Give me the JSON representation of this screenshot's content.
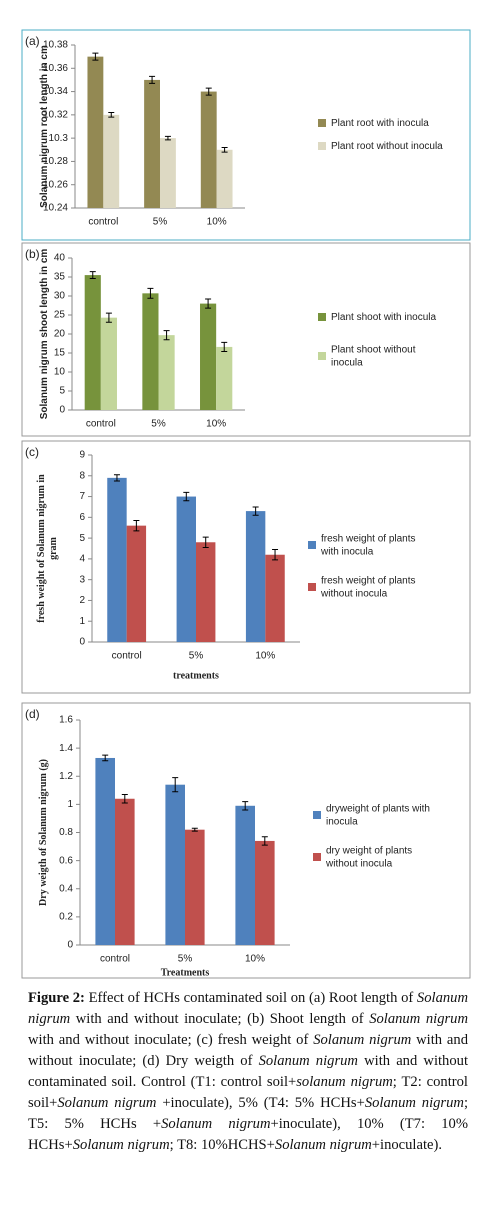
{
  "chart_data": [
    {
      "type": "bar",
      "label": "(a)",
      "ylabel": "Solanum nigrum root length in cm",
      "categories": [
        "control",
        "5%",
        "10%"
      ],
      "ylim": [
        10.24,
        10.38
      ],
      "yticks": [
        10.24,
        10.26,
        10.28,
        10.3,
        10.32,
        10.34,
        10.36,
        10.38
      ],
      "series": [
        {
          "name": "Plant root with inocula",
          "color": "#938953",
          "values": [
            10.37,
            10.35,
            10.34
          ],
          "errors": [
            0.003,
            0.003,
            0.003
          ]
        },
        {
          "name": "Plant root without inocula",
          "color": "#ddd9c3",
          "values": [
            10.32,
            10.3,
            10.29
          ],
          "errors": [
            0.002,
            0.0015,
            0.002
          ]
        }
      ]
    },
    {
      "type": "bar",
      "label": "(b)",
      "ylabel": "Solanum nigrum shoot length in cm",
      "categories": [
        "control",
        "5%",
        "10%"
      ],
      "ylim": [
        0,
        40
      ],
      "yticks": [
        0,
        5,
        10,
        15,
        20,
        25,
        30,
        35,
        40
      ],
      "series": [
        {
          "name": "Plant shoot with inocula",
          "color": "#77933c",
          "values": [
            35.5,
            30.7,
            28
          ],
          "errors": [
            0.9,
            1.3,
            1.2
          ]
        },
        {
          "name": "Plant shoot without inocula",
          "color": "#c3d69b",
          "values": [
            24.3,
            19.7,
            16.6
          ],
          "errors": [
            1.2,
            1.2,
            1.2
          ]
        }
      ]
    },
    {
      "type": "bar",
      "label": "(c)",
      "ylabel": "fresh weight of Solanum nigrum in gram",
      "xlabel": "treatments",
      "categories": [
        "control",
        "5%",
        "10%"
      ],
      "ylim": [
        0,
        9
      ],
      "yticks": [
        0,
        1,
        2,
        3,
        4,
        5,
        6,
        7,
        8,
        9
      ],
      "series": [
        {
          "name": "fresh weight of plants with inocula",
          "color": "#4f81bd",
          "values": [
            7.9,
            7.0,
            6.3
          ],
          "errors": [
            0.15,
            0.2,
            0.2
          ]
        },
        {
          "name": "fresh weight of plants without inocula",
          "color": "#c0504d",
          "values": [
            5.6,
            4.8,
            4.2
          ],
          "errors": [
            0.25,
            0.25,
            0.25
          ]
        }
      ]
    },
    {
      "type": "bar",
      "label": "(d)",
      "ylabel": "Dry weigth of Solanum nigrum (g)",
      "xlabel": "Treatments",
      "categories": [
        "control",
        "5%",
        "10%"
      ],
      "ylim": [
        0,
        1.6
      ],
      "yticks": [
        0,
        0.2,
        0.4,
        0.6,
        0.8,
        1,
        1.2,
        1.4,
        1.6
      ],
      "series": [
        {
          "name": "dryweight of plants with inocula",
          "color": "#4f81bd",
          "values": [
            1.33,
            1.14,
            0.99
          ],
          "errors": [
            0.02,
            0.05,
            0.03
          ]
        },
        {
          "name": "dry weight of plants without inocula",
          "color": "#c0504d",
          "values": [
            1.04,
            0.82,
            0.74
          ],
          "errors": [
            0.03,
            0.01,
            0.03
          ]
        }
      ]
    }
  ],
  "caption": [
    {
      "text": "Figure 2:",
      "bold": true
    },
    {
      "text": " Effect of HCHs contaminated soil on (a) Root length of "
    },
    {
      "text": "Solanum nigrum",
      "italic": true
    },
    {
      "text": " with and without inoculate; (b) Shoot length of "
    },
    {
      "text": "Solanum nigrum",
      "italic": true
    },
    {
      "text": " with and without inoculate; (c) fresh weight of "
    },
    {
      "text": "Solanum nigrum",
      "italic": true
    },
    {
      "text": " with and without inoculate; (d) Dry weigth of "
    },
    {
      "text": "Solanum nigrum",
      "italic": true
    },
    {
      "text": " with and without contaminated soil. Control (T1: control soil+"
    },
    {
      "text": "solanum nigrum",
      "italic": true
    },
    {
      "text": "; T2: control soil+"
    },
    {
      "text": "Solanum nigrum",
      "italic": true
    },
    {
      "text": " +inoculate), 5% (T4: 5% HCHs+"
    },
    {
      "text": "Solanum nigrum",
      "italic": true
    },
    {
      "text": "; T5: 5% HCHs +"
    },
    {
      "text": "Solanum nigrum",
      "italic": true
    },
    {
      "text": "+inoculate), 10% (T7: 10% HCHs+"
    },
    {
      "text": "Solanum nigrum",
      "italic": true
    },
    {
      "text": "; T8: 10%HCHS+"
    },
    {
      "text": "Solanum nigrum",
      "italic": true
    },
    {
      "text": "+inoculate)."
    }
  ]
}
